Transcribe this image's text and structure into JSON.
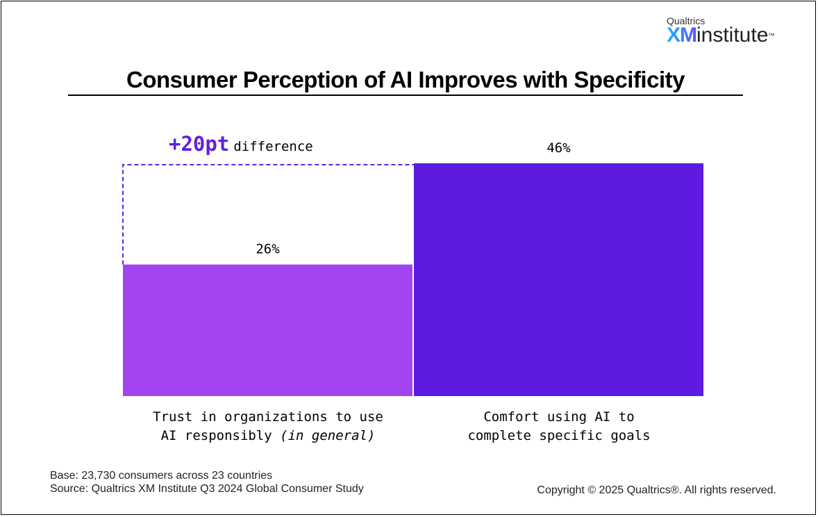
{
  "logo": {
    "small": "Qualtrics",
    "xm": "XM",
    "rest": "institute",
    "tm": "™"
  },
  "title": "Consumer Perception of AI Improves with Specificity",
  "annotation": {
    "value": "+20pt",
    "text": "difference"
  },
  "chart_data": {
    "type": "bar",
    "title": "Consumer Perception of AI Improves with Specificity",
    "categories": [
      "Trust in organizations to use AI responsibly (in general)",
      "Comfort using AI to complete specific goals"
    ],
    "values": [
      26,
      46
    ],
    "value_labels": [
      "26%",
      "46%"
    ],
    "colors": [
      "#a245f0",
      "#5e1ae0"
    ],
    "ylim": [
      0,
      46
    ],
    "xlabel": "",
    "ylabel": "",
    "grid": false,
    "annotation": "+20pt difference",
    "annotation_color": "#6120e0"
  },
  "categories_display": [
    {
      "line1": "Trust in organizations to use",
      "line2a": "AI responsibly ",
      "line2b": "(in general)"
    },
    {
      "line1": "Comfort using AI to",
      "line2a": "complete specific goals",
      "line2b": ""
    }
  ],
  "footer": {
    "base": "Base: 23,730 consumers across 23 countries",
    "source": "Source: Qualtrics XM Institute Q3 2024 Global Consumer Study",
    "copyright": "Copyright © 2025 Qualtrics®. All rights reserved."
  }
}
